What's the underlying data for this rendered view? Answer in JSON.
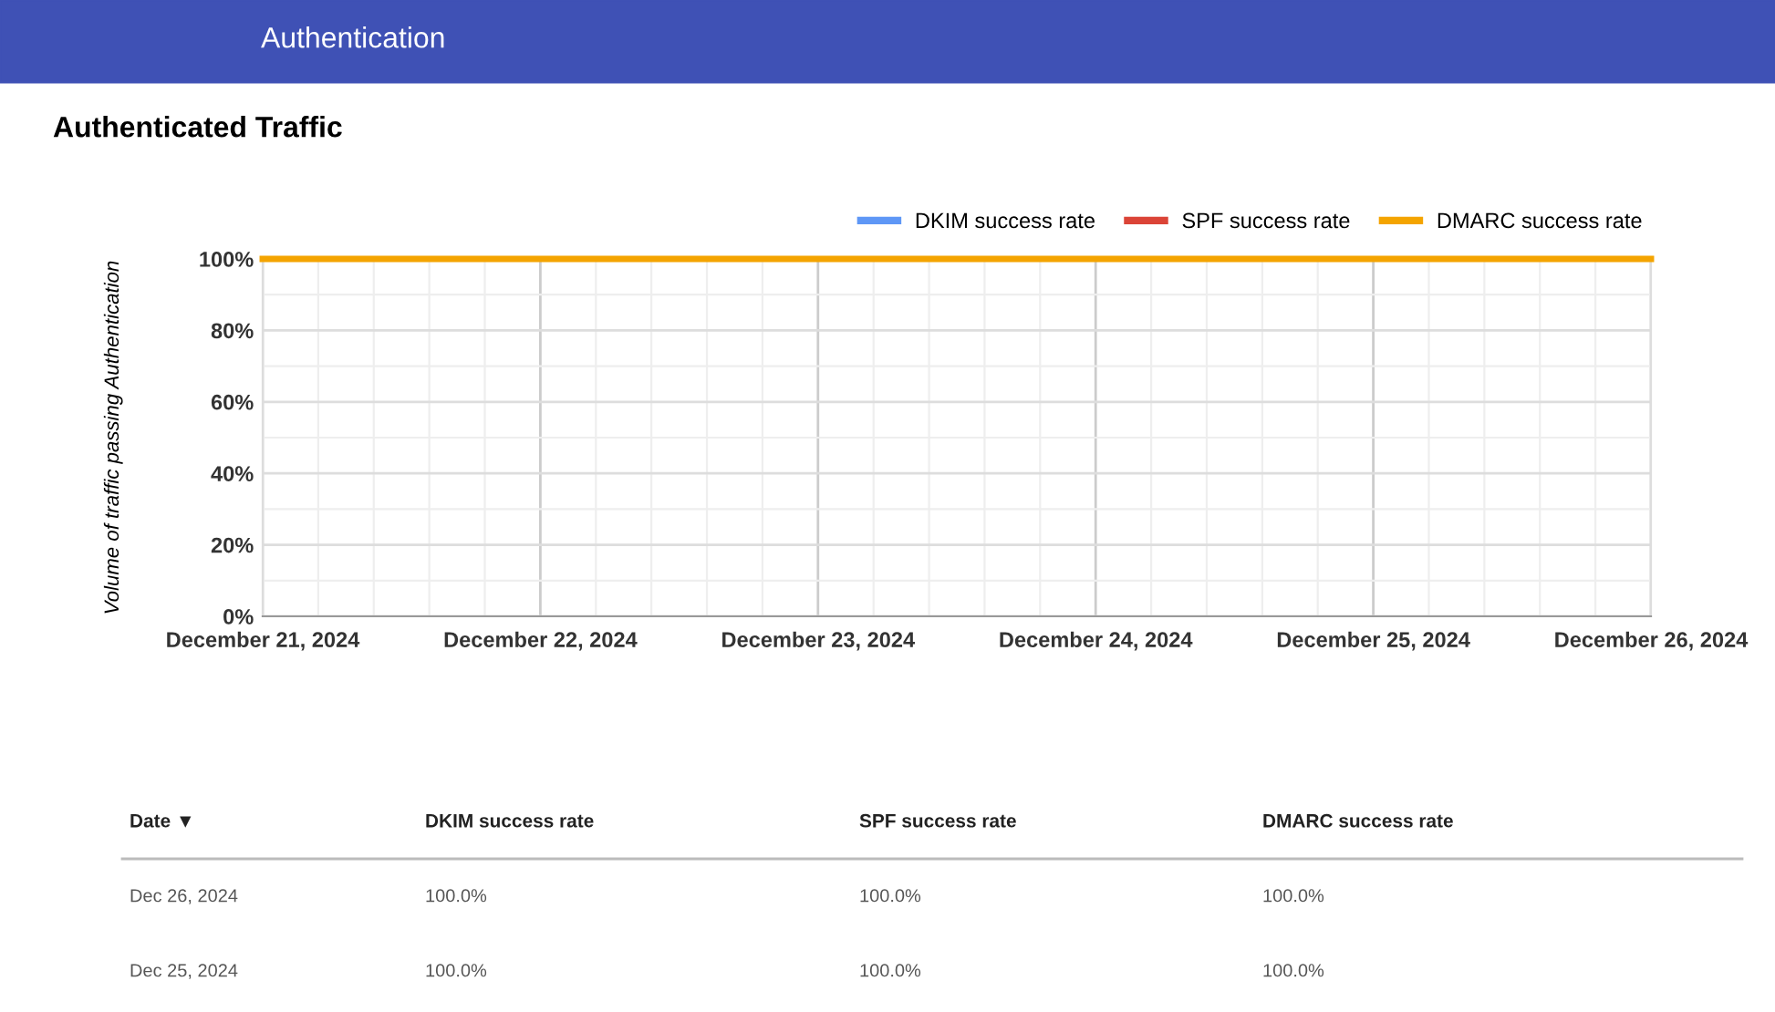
{
  "chart_data": {
    "type": "line",
    "title": "Authenticated Traffic",
    "subtitle": "Authentication",
    "ylabel": "Volume of traffic passing Authentication",
    "x": [
      "2024-12-21",
      "2024-12-22",
      "2024-12-23",
      "2024-12-24",
      "2024-12-25",
      "2024-12-26"
    ],
    "series": [
      {
        "name": "DKIM success rate",
        "color": "#5e97f6",
        "values": [
          null,
          null,
          null,
          null,
          null,
          null
        ]
      },
      {
        "name": "SPF success rate",
        "color": "#db4437",
        "values": [
          null,
          null,
          null,
          null,
          null,
          null
        ]
      },
      {
        "name": "DMARC success rate",
        "color": "#f4a400",
        "values": [
          100,
          100,
          100,
          100,
          100,
          100
        ]
      }
    ],
    "xlim": [
      "2024-12-21",
      "2024-12-26"
    ],
    "xticks": [
      {
        "value": "2024-12-21",
        "label": "December 21, 2024"
      },
      {
        "value": "2024-12-22",
        "label": "December 22, 2024"
      },
      {
        "value": "2024-12-23",
        "label": "December 23, 2024"
      },
      {
        "value": "2024-12-24",
        "label": "December 24, 2024"
      },
      {
        "value": "2024-12-25",
        "label": "December 25, 2024"
      },
      {
        "value": "2024-12-26",
        "label": "December 26, 2024"
      }
    ],
    "ylim": [
      0,
      100
    ],
    "yticks": [
      {
        "value": 0,
        "label": "0%"
      },
      {
        "value": 20,
        "label": "20%"
      },
      {
        "value": 40,
        "label": "40%"
      },
      {
        "value": 60,
        "label": "60%"
      },
      {
        "value": 80,
        "label": "80%"
      },
      {
        "value": 100,
        "label": "100%"
      }
    ],
    "grid": true,
    "legend": "top right",
    "marker": "none",
    "line_style": "solid",
    "annotations": [
      "Date ▼",
      "DKIM success rate",
      "SPF success rate",
      "DMARC success rate",
      "Dec 26, 2024",
      "100.0%",
      "100.0%",
      "100.0%",
      "Dec 25, 2024",
      "100.0%",
      "100.0%",
      "100.0%"
    ]
  }
}
